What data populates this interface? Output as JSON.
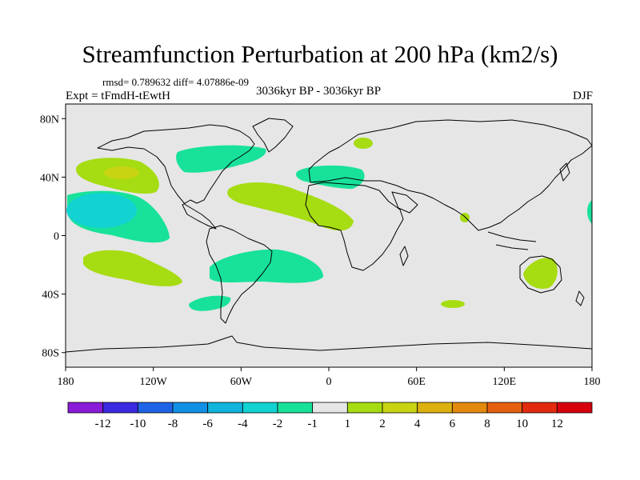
{
  "title": "Streamfunction Perturbation at 200 hPa (km2/s)",
  "subtitle": "rmsd= 0.789632 diff= 4.07886e-09",
  "left_label": "Expt = tFmdH-tEwtH",
  "center_label": "3036kyr BP - 3036kyr BP",
  "right_label": "DJF",
  "map": {
    "background_color": "#e6e6e6",
    "lon_range": [
      -180,
      180
    ],
    "lat_range": [
      -90,
      90
    ],
    "x_ticks": [
      "180",
      "120W",
      "60W",
      "0",
      "60E",
      "120E",
      "180"
    ],
    "y_ticks": [
      "80N",
      "40N",
      "0",
      "40S",
      "80S"
    ]
  },
  "colorbar": {
    "colors": [
      "#8a1bd8",
      "#3b2ae0",
      "#1f64e6",
      "#1191e6",
      "#10b4dc",
      "#12d2d2",
      "#18e29a",
      "#e6e6e6",
      "#a6dc12",
      "#c8d412",
      "#dcb00e",
      "#e2890e",
      "#e4600e",
      "#e22a0e",
      "#d9000e"
    ],
    "labels": [
      "-12",
      "-10",
      "-8",
      "-6",
      "-4",
      "-2",
      "-1",
      "1",
      "2",
      "4",
      "6",
      "8",
      "10",
      "12"
    ]
  }
}
